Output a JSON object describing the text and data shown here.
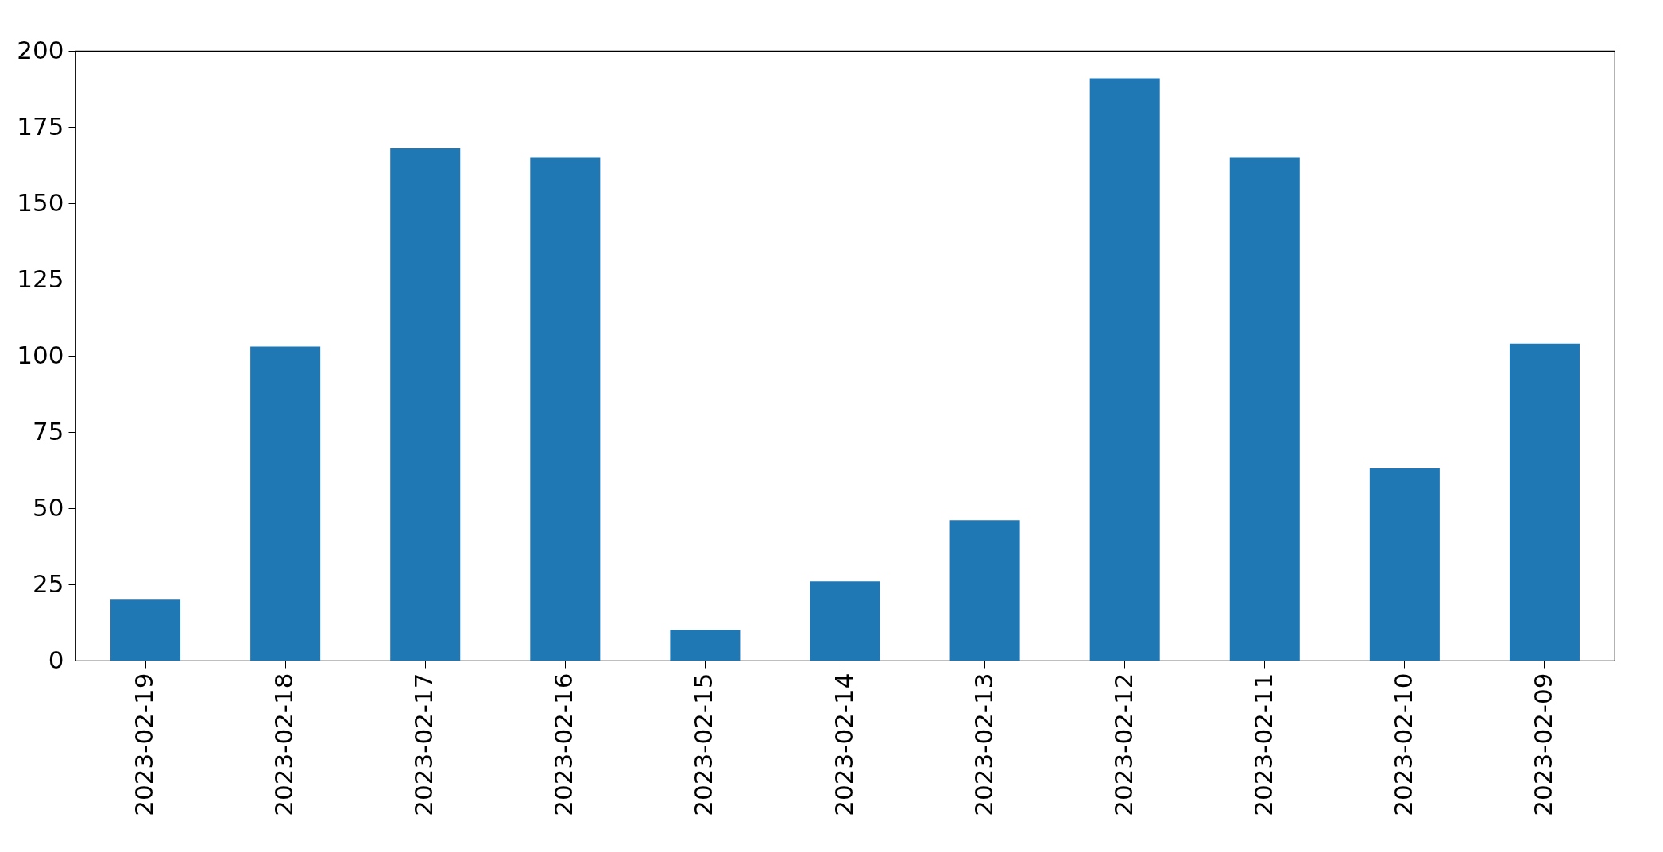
{
  "chart_data": {
    "type": "bar",
    "categories": [
      "2023-02-19",
      "2023-02-18",
      "2023-02-17",
      "2023-02-16",
      "2023-02-15",
      "2023-02-14",
      "2023-02-13",
      "2023-02-12",
      "2023-02-11",
      "2023-02-10",
      "2023-02-09"
    ],
    "values": [
      20,
      103,
      168,
      165,
      10,
      26,
      46,
      191,
      165,
      63,
      104
    ],
    "color": "#1f77b4",
    "ylim": [
      0,
      200
    ],
    "yticks": [
      0,
      25,
      50,
      75,
      100,
      125,
      150,
      175,
      200
    ],
    "grid": false
  }
}
